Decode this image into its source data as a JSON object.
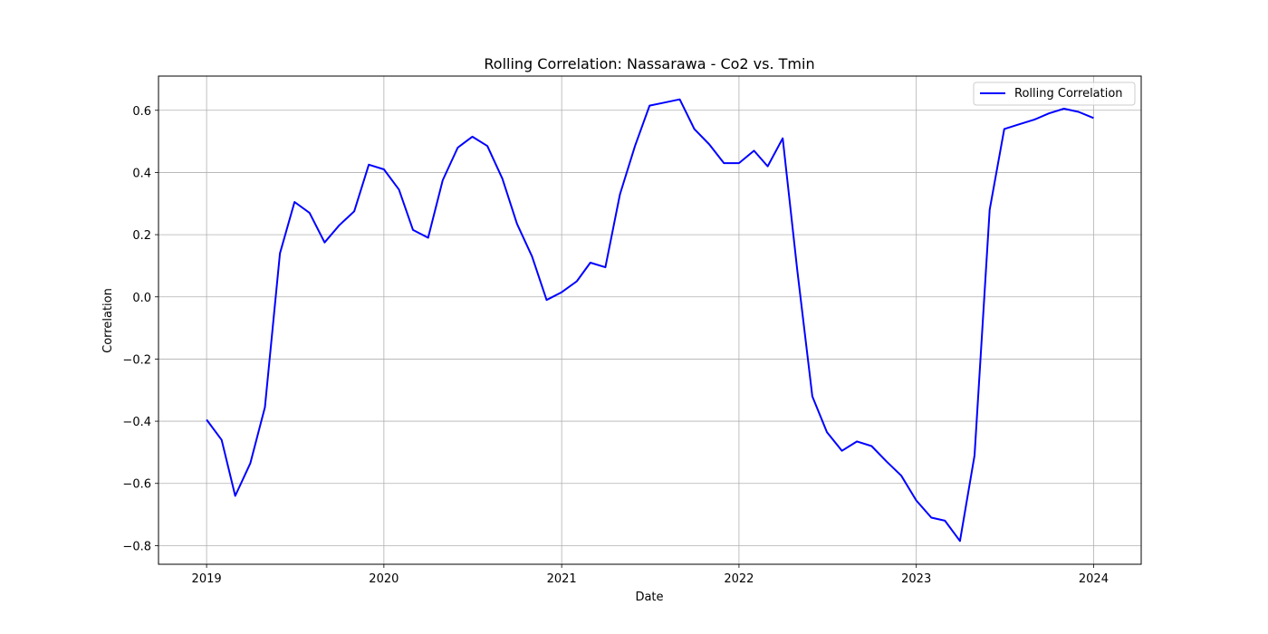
{
  "chart_data": {
    "type": "line",
    "title": "Rolling Correlation: Nassarawa - Co2 vs. Tmin",
    "xlabel": "Date",
    "ylabel": "Correlation",
    "xlim": [
      "2018-09-24",
      "2024-04-08"
    ],
    "ylim": [
      -0.86,
      0.71
    ],
    "x_ticks": [
      "2019",
      "2020",
      "2021",
      "2022",
      "2023",
      "2024"
    ],
    "y_ticks": [
      "−0.8",
      "−0.6",
      "−0.4",
      "−0.2",
      "0.0",
      "0.2",
      "0.4",
      "0.6"
    ],
    "grid": true,
    "legend_position": "top-right",
    "series": [
      {
        "name": "Rolling Correlation",
        "color": "#0000ff",
        "x": [
          "2019-01-01",
          "2019-02-01",
          "2019-03-01",
          "2019-04-01",
          "2019-05-01",
          "2019-06-01",
          "2019-07-01",
          "2019-08-01",
          "2019-09-01",
          "2019-10-01",
          "2019-11-01",
          "2019-12-01",
          "2020-01-01",
          "2020-02-01",
          "2020-03-01",
          "2020-04-01",
          "2020-05-01",
          "2020-06-01",
          "2020-07-01",
          "2020-08-01",
          "2020-09-01",
          "2020-10-01",
          "2020-11-01",
          "2020-12-01",
          "2021-01-01",
          "2021-02-01",
          "2021-03-01",
          "2021-04-01",
          "2021-05-01",
          "2021-06-01",
          "2021-07-01",
          "2021-08-01",
          "2021-09-01",
          "2021-10-01",
          "2021-11-01",
          "2021-12-01",
          "2022-01-01",
          "2022-02-01",
          "2022-03-01",
          "2022-04-01",
          "2022-05-01",
          "2022-06-01",
          "2022-07-01",
          "2022-08-01",
          "2022-09-01",
          "2022-10-01",
          "2022-11-01",
          "2022-12-01",
          "2023-01-01",
          "2023-02-01",
          "2023-03-01",
          "2023-04-01",
          "2023-05-01",
          "2023-06-01",
          "2023-07-01",
          "2023-08-01",
          "2023-09-01",
          "2023-10-01",
          "2023-11-01",
          "2023-12-01",
          "2024-01-01"
        ],
        "y": [
          -0.395,
          -0.46,
          -0.64,
          -0.535,
          -0.355,
          0.14,
          0.305,
          0.27,
          0.175,
          0.23,
          0.275,
          0.425,
          0.41,
          0.345,
          0.215,
          0.19,
          0.375,
          0.48,
          0.515,
          0.485,
          0.38,
          0.235,
          0.13,
          -0.01,
          0.015,
          0.05,
          0.11,
          0.095,
          0.33,
          0.485,
          0.615,
          0.625,
          0.635,
          0.54,
          0.49,
          0.43,
          0.43,
          0.47,
          0.42,
          0.51,
          0.085,
          -0.32,
          -0.435,
          -0.495,
          -0.465,
          -0.48,
          -0.53,
          -0.575,
          -0.655,
          -0.71,
          -0.72,
          -0.785,
          -0.51,
          0.28,
          0.54,
          0.555,
          0.57,
          0.59,
          0.605,
          0.595,
          0.575
        ]
      }
    ]
  }
}
